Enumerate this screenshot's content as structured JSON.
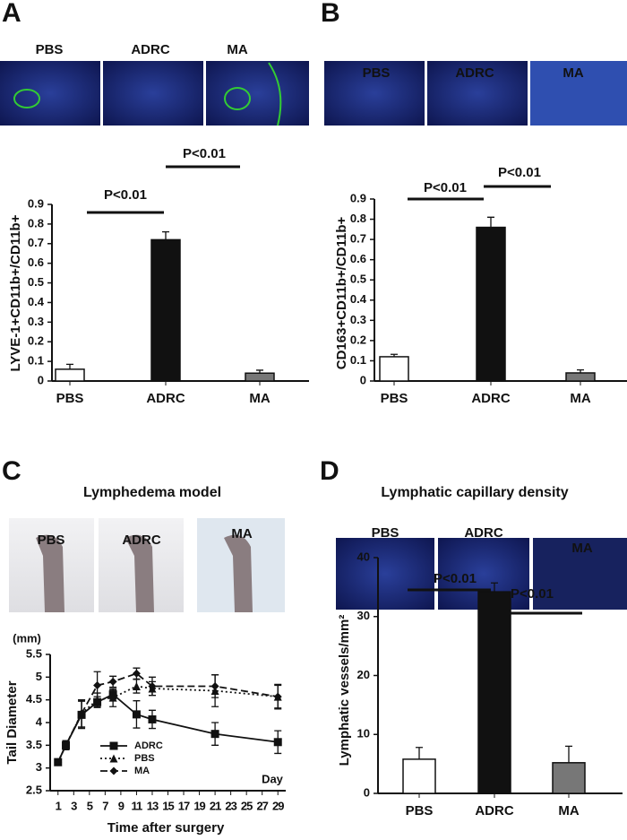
{
  "chart_data": [
    {
      "type": "bar",
      "panel": "A",
      "image_labels": [
        "PBS",
        "ADRC",
        "MA"
      ],
      "y_label": "LYVE-1+CD11b+/CD11b+",
      "annotations": [
        "P<0.01",
        "P<0.01"
      ],
      "categories": [
        "PBS",
        "ADRC",
        "MA"
      ],
      "values": [
        0.06,
        0.72,
        0.04
      ],
      "errors": [
        0.025,
        0.04,
        0.015
      ],
      "colors": [
        "#ffffff",
        "#111111",
        "#777777"
      ],
      "ylim": [
        0,
        0.9
      ],
      "yticks": [
        0,
        0.1,
        0.2,
        0.3,
        0.4,
        0.5,
        0.6,
        0.7,
        0.8,
        0.9
      ]
    },
    {
      "type": "bar",
      "panel": "B",
      "image_labels": [
        "PBS",
        "ADRC",
        "MA"
      ],
      "y_label": "CD163+CD11b+/CD11b+",
      "annotations": [
        "P<0.01",
        "P<0.01"
      ],
      "categories": [
        "PBS",
        "ADRC",
        "MA"
      ],
      "values": [
        0.12,
        0.76,
        0.04
      ],
      "errors": [
        0.012,
        0.05,
        0.015
      ],
      "colors": [
        "#ffffff",
        "#111111",
        "#777777"
      ],
      "ylim": [
        0,
        0.9
      ],
      "yticks": [
        0,
        0.1,
        0.2,
        0.3,
        0.4,
        0.5,
        0.6,
        0.7,
        0.8,
        0.9
      ]
    },
    {
      "type": "line",
      "panel": "C",
      "title": "Lymphedema model",
      "image_labels": [
        "PBS",
        "ADRC",
        "MA"
      ],
      "y_label": "Tail Diameter",
      "y_unit": "(mm)",
      "x_label": "Time after surgery",
      "x_unit": "Day",
      "x": [
        1,
        2,
        4,
        6,
        8,
        11,
        13,
        21,
        29
      ],
      "series": [
        {
          "name": "ADRC",
          "color": "#111111",
          "line_style": "solid",
          "marker": "square",
          "values": [
            3.13,
            3.5,
            4.17,
            4.45,
            4.62,
            4.18,
            4.07,
            3.75,
            3.57
          ],
          "errors": [
            0.05,
            0.1,
            0.3,
            0.12,
            0.1,
            0.3,
            0.2,
            0.25,
            0.25
          ]
        },
        {
          "name": "PBS",
          "color": "#111111",
          "line_style": "dotted",
          "marker": "triangle",
          "values": [
            3.13,
            3.5,
            4.2,
            4.5,
            4.55,
            4.8,
            4.75,
            4.7,
            4.57
          ],
          "errors": [
            0.05,
            0.1,
            0.3,
            0.15,
            0.2,
            0.15,
            0.15,
            0.35,
            0.25
          ]
        },
        {
          "name": "MA",
          "color": "#111111",
          "line_style": "dashed",
          "marker": "diamond",
          "values": [
            3.13,
            3.5,
            4.2,
            4.82,
            4.9,
            5.08,
            4.8,
            4.8,
            4.57
          ],
          "errors": [
            0.05,
            0.1,
            0.3,
            0.3,
            0.12,
            0.12,
            0.2,
            0.25,
            0.27
          ]
        }
      ],
      "xlim": [
        0,
        30
      ],
      "xticks": [
        1,
        3,
        5,
        7,
        9,
        11,
        13,
        15,
        17,
        19,
        21,
        23,
        25,
        27,
        29
      ],
      "ylim": [
        2.5,
        5.5
      ],
      "yticks": [
        2.5,
        3,
        3.5,
        4,
        4.5,
        5,
        5.5
      ]
    },
    {
      "type": "bar",
      "panel": "D",
      "title": "Lymphatic capillary density",
      "image_labels": [
        "PBS",
        "ADRC",
        "MA"
      ],
      "y_label": "Lymphatic vessels/mm²",
      "annotations": [
        "P<0.01",
        "P<0.01"
      ],
      "categories": [
        "PBS",
        "ADRC",
        "MA"
      ],
      "values": [
        5.8,
        34.2,
        5.2
      ],
      "errors": [
        2,
        1.5,
        2.8
      ],
      "colors": [
        "#ffffff",
        "#111111",
        "#777777"
      ],
      "ylim": [
        0,
        40
      ],
      "yticks": [
        0,
        10,
        20,
        30,
        40
      ]
    }
  ]
}
